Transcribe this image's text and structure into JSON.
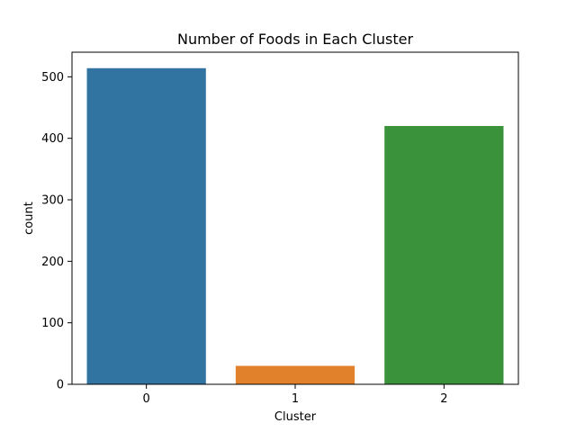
{
  "chart_data": {
    "type": "bar",
    "title": "Number of Foods in Each Cluster",
    "xlabel": "Cluster",
    "ylabel": "count",
    "categories": [
      "0",
      "1",
      "2"
    ],
    "values": [
      514,
      30,
      420
    ],
    "colors": [
      "#3274a1",
      "#e1812c",
      "#3a923a"
    ],
    "ylim": [
      0,
      540
    ],
    "yticks": [
      0,
      100,
      200,
      300,
      400,
      500
    ],
    "grid": false,
    "legend": "none"
  }
}
